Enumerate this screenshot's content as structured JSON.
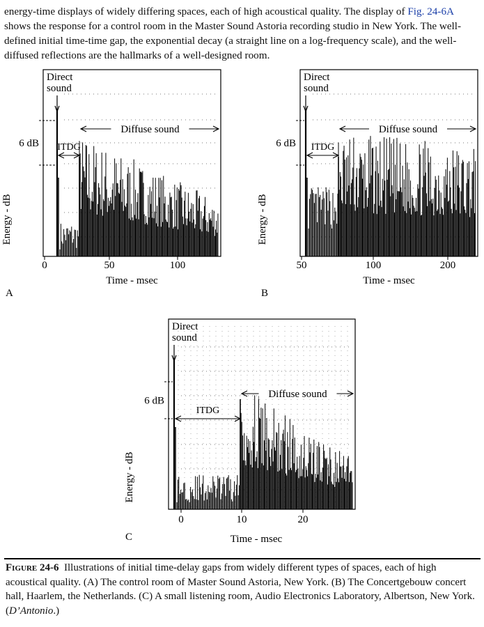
{
  "body_text": {
    "pre": "energy-time displays of widely differing spaces, each of high acoustical quality. The display of ",
    "link": "Fig. 24-6A",
    "post": " shows the response for a control room in the Master Sound Astoria recording studio in New York. The well-defined initial time-time gap, the exponential decay (a straight line on a log-frequency scale), and the well-diffused reflections are the hallmarks of a well-designed room."
  },
  "chart_data": [
    {
      "type": "line",
      "panel": "A",
      "ylabel": "Energy - dB",
      "xlabel": "Time - msec",
      "x_ticks": [
        "0",
        "50",
        "100"
      ],
      "xlim": [
        0,
        130
      ],
      "annotations": {
        "direct": [
          "Direct",
          "sound"
        ],
        "diffuse": "Diffuse sound",
        "itdg": "ITDG",
        "db": "6 dB"
      },
      "direct_sound_ms": 9,
      "itdg_ms": [
        9,
        25
      ]
    },
    {
      "type": "line",
      "panel": "B",
      "ylabel": "Energy - dB",
      "xlabel": "Time - msec",
      "x_ticks": [
        "50",
        "100",
        "200"
      ],
      "xlim": [
        50,
        240
      ],
      "annotations": {
        "direct": [
          "Direct",
          "sound"
        ],
        "diffuse": "Diffuse sound",
        "itdg": "ITDG",
        "db": "6 dB"
      },
      "direct_sound_ms": 52,
      "itdg_ms": [
        52,
        77
      ]
    },
    {
      "type": "line",
      "panel": "C",
      "ylabel": "Energy - dB",
      "xlabel": "Time - msec",
      "x_ticks": [
        "0",
        "10",
        "20"
      ],
      "xlim": [
        -2,
        28.5
      ],
      "annotations": {
        "direct": [
          "Direct",
          "sound"
        ],
        "diffuse": "Diffuse sound",
        "itdg": "ITDG",
        "db": "6 dB"
      },
      "direct_sound_ms": -1,
      "itdg_ms": [
        -1,
        9.5
      ]
    }
  ],
  "caption": {
    "figno": "Figure 24-6",
    "text": "Illustrations of initial time-delay gaps from widely different types of spaces, each of high acoustical quality. (A) The control room of Master Sound Astoria, New York. (B) The Concertgebouw concert hall, Haarlem, the Netherlands. (C) A small listening room, Audio Electronics Laboratory, Albertson, New York. (",
    "credit": "D’Antonio",
    "end": ".)"
  }
}
